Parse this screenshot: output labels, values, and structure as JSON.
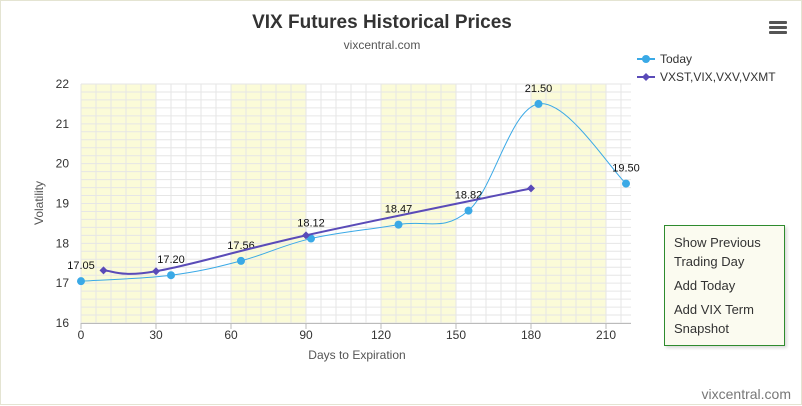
{
  "chart_data": {
    "type": "line",
    "title": "VIX Futures Historical Prices",
    "subtitle": "vixcentral.com",
    "xlabel": "Days to Expiration",
    "ylabel": "Volatility",
    "xlim": [
      0,
      220
    ],
    "ylim": [
      16,
      22
    ],
    "x_ticks": [
      0,
      30,
      60,
      90,
      120,
      150,
      180,
      210
    ],
    "y_ticks": [
      16,
      17,
      18,
      19,
      20,
      21,
      22
    ],
    "shaded_bands": [
      [
        0,
        30
      ],
      [
        60,
        90
      ],
      [
        120,
        150
      ],
      [
        180,
        210
      ]
    ],
    "grid": true,
    "legend_position": "top-right",
    "series": [
      {
        "name": "Today",
        "color": "#3aa9e6",
        "marker": "circle",
        "smooth": true,
        "x": [
          0,
          36,
          64,
          92,
          127,
          155,
          183,
          218
        ],
        "y": [
          17.05,
          17.2,
          17.56,
          18.12,
          18.47,
          18.82,
          21.5,
          19.5
        ],
        "labels": [
          "17.05",
          "17.20",
          "17.56",
          "18.12",
          "18.47",
          "18.82",
          "21.50",
          "19.50"
        ]
      },
      {
        "name": "VXST,VIX,VXV,VXMT",
        "color": "#5a4bb8",
        "marker": "diamond",
        "smooth": true,
        "x": [
          9,
          30,
          90,
          180
        ],
        "y": [
          17.32,
          17.3,
          18.2,
          19.38
        ],
        "labels": []
      }
    ]
  },
  "menu": {
    "icon": "hamburger-icon",
    "items": [
      "Show Previous Trading Day",
      "Add Today",
      "Add VIX Term Snapshot"
    ]
  },
  "credit": "vixcentral.com"
}
